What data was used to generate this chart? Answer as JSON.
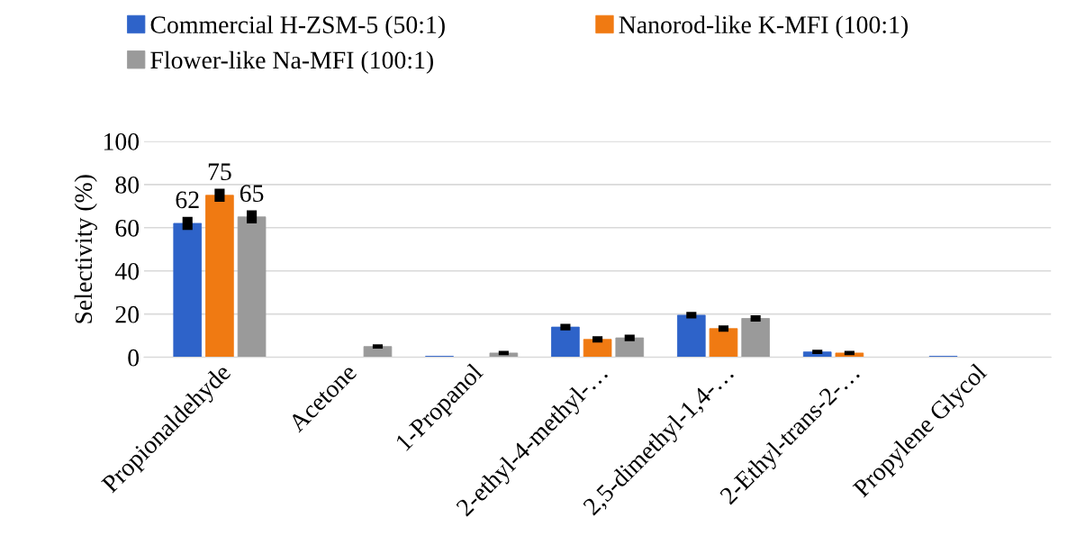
{
  "chart_data": {
    "type": "bar",
    "ylabel": "Selectivity (%)",
    "categories": [
      "Propionaldehyde",
      "Acetone",
      "1-Propanol",
      "2-ethyl-4-methyl-…",
      "2,5-dimethyl-1,4-…",
      "2-Ethyl-trans-2-…",
      "Propylene Glycol"
    ],
    "series": [
      {
        "name": "Commercial H-ZSM-5 (50:1)",
        "color": "#2e63c9",
        "values": [
          62,
          0,
          0.5,
          14,
          19.5,
          2.5,
          0.5
        ],
        "errors": [
          3,
          null,
          null,
          1.5,
          1.5,
          1,
          null
        ],
        "value_labels": [
          "62",
          null,
          null,
          null,
          null,
          null,
          null
        ]
      },
      {
        "name": "Nanorod-like K-MFI (100:1)",
        "color": "#f07a12",
        "values": [
          75,
          0,
          0,
          8.3,
          13.3,
          2,
          0
        ],
        "errors": [
          3,
          null,
          null,
          1.5,
          1.5,
          1,
          null
        ],
        "value_labels": [
          "75",
          null,
          null,
          null,
          null,
          null,
          null
        ]
      },
      {
        "name": "Flower-like Na-MFI (100:1)",
        "color": "#9a9a9a",
        "values": [
          65,
          5,
          2,
          9,
          18,
          0,
          0
        ],
        "errors": [
          3,
          1,
          1,
          1.5,
          1.5,
          null,
          null
        ],
        "value_labels": [
          "65",
          null,
          null,
          null,
          null,
          null,
          null
        ]
      }
    ],
    "ylim": [
      0,
      100
    ],
    "yticks": [
      0,
      20,
      40,
      60,
      80,
      100
    ],
    "grid": "y",
    "legend": "top"
  }
}
